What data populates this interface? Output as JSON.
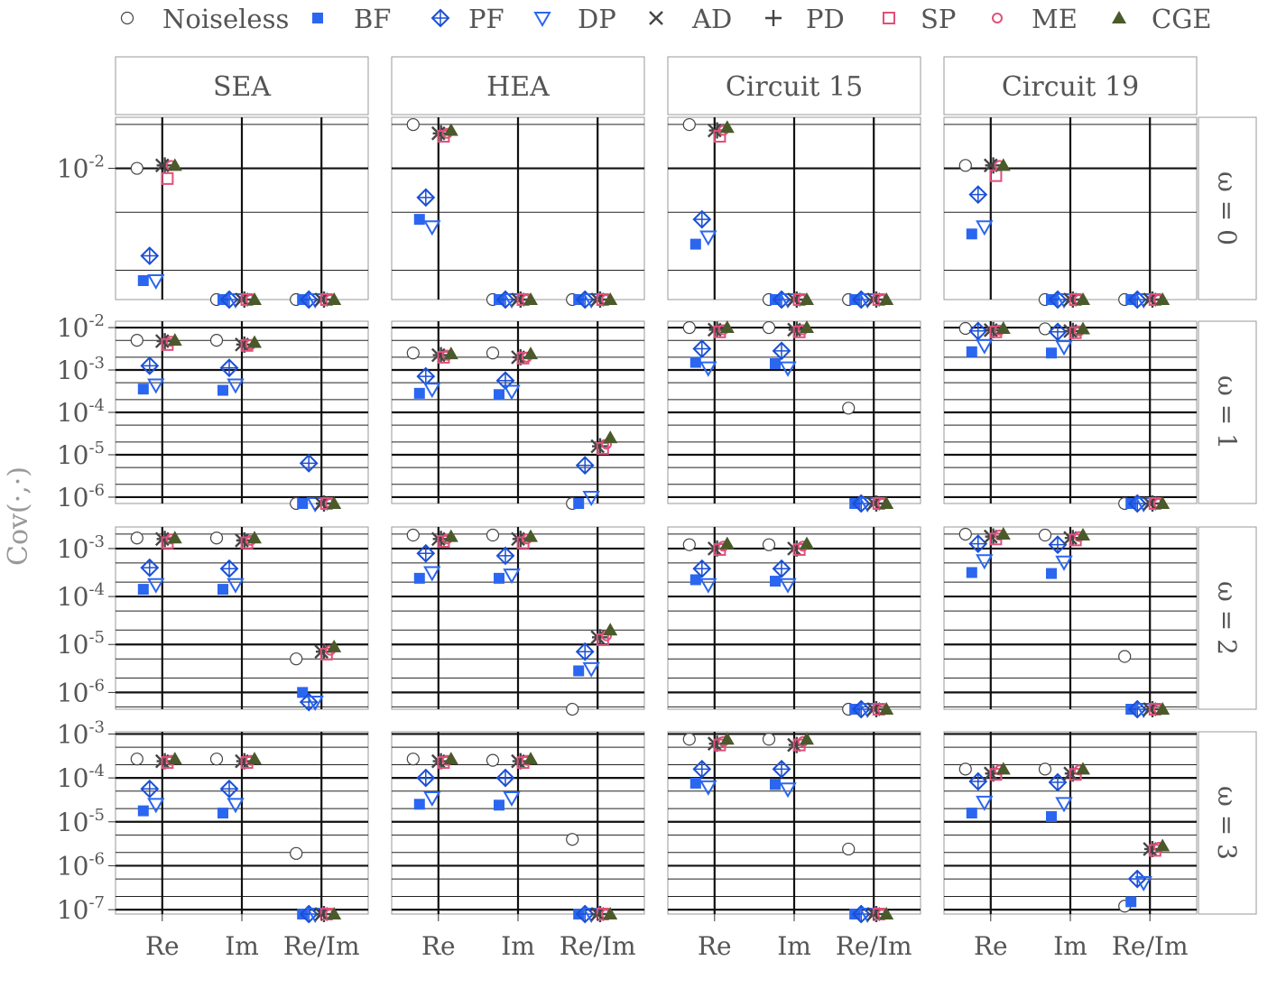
{
  "chart_data": {
    "type": "scatter",
    "ylabel": "Cov(·,·)",
    "yscale": "log",
    "columns": [
      "SEA",
      "HEA",
      "Circuit 15",
      "Circuit 19"
    ],
    "rows": [
      "ω = 0",
      "ω = 1",
      "ω = 2",
      "ω = 3"
    ],
    "categories": [
      "Re",
      "Im",
      "Re/Im"
    ],
    "legend": [
      {
        "name": "Noiseless",
        "marker": "open-circle",
        "color": "#444444"
      },
      {
        "name": "BF",
        "marker": "filled-square",
        "color": "#2a66f0"
      },
      {
        "name": "PF",
        "marker": "diamond-plus",
        "color": "#1a4fd6"
      },
      {
        "name": "DP",
        "marker": "open-triangle-down",
        "color": "#2a66f0"
      },
      {
        "name": "AD",
        "marker": "cross",
        "color": "#444444"
      },
      {
        "name": "PD",
        "marker": "plus",
        "color": "#444444"
      },
      {
        "name": "SP",
        "marker": "open-square",
        "color": "#e0507a"
      },
      {
        "name": "ME",
        "marker": "open-circle-small",
        "color": "#e0507a"
      },
      {
        "name": "CGE",
        "marker": "filled-triangle-up",
        "color": "#4a5a2a"
      }
    ],
    "legend_position": "top",
    "row_axes": [
      {
        "ylim_log10": [
          -2.9,
          -1.65
        ],
        "ticks": [
          {
            "value": -2,
            "label": "10-2"
          }
        ]
      },
      {
        "ylim_log10": [
          -6.15,
          -1.85
        ],
        "ticks": [
          {
            "value": -2,
            "label": "10-2"
          },
          {
            "value": -3,
            "label": "10-3"
          },
          {
            "value": -4,
            "label": "10-4"
          },
          {
            "value": -5,
            "label": "10-5"
          },
          {
            "value": -6,
            "label": "10-6"
          }
        ]
      },
      {
        "ylim_log10": [
          -6.35,
          -2.55
        ],
        "ticks": [
          {
            "value": -3,
            "label": "10-3"
          },
          {
            "value": -4,
            "label": "10-4"
          },
          {
            "value": -5,
            "label": "10-5"
          },
          {
            "value": -6,
            "label": "10-6"
          }
        ]
      },
      {
        "ylim_log10": [
          -7.1,
          -2.95
        ],
        "ticks": [
          {
            "value": -3,
            "label": "10-3"
          },
          {
            "value": -4,
            "label": "10-4"
          },
          {
            "value": -5,
            "label": "10-5"
          },
          {
            "value": -6,
            "label": "10-6"
          },
          {
            "value": -7,
            "label": "10-7"
          }
        ]
      }
    ],
    "panels": [
      [
        {
          "Re": [
            -2.0,
            -2.77,
            -2.6,
            -2.77,
            -1.98,
            -1.98,
            -2.07,
            -1.98,
            -1.98
          ],
          "Im": [
            -2.9,
            -2.9,
            -2.9,
            -2.9,
            -2.9,
            -2.9,
            -2.9,
            -2.9,
            -2.9
          ],
          "Re/Im": [
            -2.9,
            -2.9,
            -2.9,
            -2.9,
            -2.9,
            -2.9,
            -2.9,
            -2.9,
            -2.9
          ]
        },
        {
          "Re": [
            -1.7,
            -2.35,
            -2.2,
            -2.4,
            -1.76,
            -1.76,
            -1.78,
            -1.76,
            -1.74
          ],
          "Im": [
            -2.9,
            -2.9,
            -2.9,
            -2.9,
            -2.9,
            -2.9,
            -2.9,
            -2.9,
            -2.9
          ],
          "Re/Im": [
            -2.9,
            -2.9,
            -2.9,
            -2.9,
            -2.9,
            -2.9,
            -2.9,
            -2.9,
            -2.9
          ]
        },
        {
          "Re": [
            -1.7,
            -2.52,
            -2.35,
            -2.47,
            -1.74,
            -1.74,
            -1.78,
            -1.74,
            -1.72
          ],
          "Im": [
            -2.9,
            -2.9,
            -2.9,
            -2.9,
            -2.9,
            -2.9,
            -2.9,
            -2.9,
            -2.9
          ],
          "Re/Im": [
            -2.9,
            -2.9,
            -2.9,
            -2.9,
            -2.9,
            -2.9,
            -2.9,
            -2.9,
            -2.9
          ]
        },
        {
          "Re": [
            -1.98,
            -2.45,
            -2.18,
            -2.4,
            -1.98,
            -1.98,
            -2.05,
            -1.98,
            -1.98
          ],
          "Im": [
            -2.9,
            -2.9,
            -2.9,
            -2.9,
            -2.9,
            -2.9,
            -2.9,
            -2.9,
            -2.9
          ],
          "Re/Im": [
            -2.9,
            -2.9,
            -2.9,
            -2.9,
            -2.9,
            -2.9,
            -2.9,
            -2.9,
            -2.9
          ]
        }
      ],
      [
        {
          "Re": [
            -2.3,
            -3.45,
            -2.9,
            -3.35,
            -2.32,
            -2.32,
            -2.4,
            -2.32,
            -2.3
          ],
          "Im": [
            -2.3,
            -3.48,
            -2.95,
            -3.35,
            -2.4,
            -2.4,
            -2.42,
            -2.4,
            -2.35
          ],
          "Re/Im": [
            -6.15,
            -6.15,
            -5.2,
            -6.15,
            -6.15,
            -6.15,
            -6.15,
            -6.15,
            -6.15
          ]
        },
        {
          "Re": [
            -2.6,
            -3.55,
            -3.15,
            -3.45,
            -2.65,
            -2.65,
            -2.7,
            -2.65,
            -2.62
          ],
          "Im": [
            -2.6,
            -3.58,
            -3.25,
            -3.5,
            -2.7,
            -2.7,
            -2.72,
            -2.7,
            -2.62
          ],
          "Re/Im": [
            -6.15,
            -6.15,
            -5.25,
            -6.0,
            -4.8,
            -4.8,
            -4.85,
            -4.75,
            -4.6
          ]
        },
        {
          "Re": [
            -2.0,
            -2.82,
            -2.5,
            -2.95,
            -2.05,
            -2.05,
            -2.1,
            -2.05,
            -2.0
          ],
          "Im": [
            -2.0,
            -2.85,
            -2.55,
            -2.95,
            -2.05,
            -2.05,
            -2.1,
            -2.05,
            -2.0
          ],
          "Re/Im": [
            -3.9,
            -6.15,
            -6.15,
            -6.15,
            -6.15,
            -6.15,
            -6.15,
            -6.15,
            -6.15
          ]
        },
        {
          "Re": [
            -2.02,
            -2.57,
            -2.08,
            -2.42,
            -2.06,
            -2.06,
            -2.1,
            -2.06,
            -2.02
          ],
          "Im": [
            -2.03,
            -2.6,
            -2.1,
            -2.45,
            -2.08,
            -2.08,
            -2.12,
            -2.08,
            -2.03
          ],
          "Re/Im": [
            -6.15,
            -6.15,
            -6.15,
            -6.15,
            -6.15,
            -6.15,
            -6.15,
            -6.15,
            -6.15
          ]
        }
      ],
      [
        {
          "Re": [
            -2.78,
            -3.85,
            -3.4,
            -3.75,
            -2.8,
            -2.8,
            -2.88,
            -2.8,
            -2.78
          ],
          "Im": [
            -2.78,
            -3.85,
            -3.42,
            -3.75,
            -2.83,
            -2.83,
            -2.88,
            -2.83,
            -2.78
          ],
          "Re/Im": [
            -5.3,
            -6.0,
            -6.2,
            -6.2,
            -5.15,
            -5.15,
            -5.2,
            -5.12,
            -5.05
          ]
        },
        {
          "Re": [
            -2.72,
            -3.62,
            -3.1,
            -3.5,
            -2.8,
            -2.8,
            -2.85,
            -2.8,
            -2.75
          ],
          "Im": [
            -2.72,
            -3.62,
            -3.15,
            -3.55,
            -2.8,
            -2.8,
            -2.88,
            -2.8,
            -2.75
          ],
          "Re/Im": [
            -6.35,
            -5.55,
            -5.15,
            -5.5,
            -4.85,
            -4.85,
            -4.9,
            -4.82,
            -4.7
          ]
        },
        {
          "Re": [
            -2.92,
            -3.65,
            -3.42,
            -3.75,
            -3.0,
            -3.0,
            -3.02,
            -2.95,
            -2.9
          ],
          "Im": [
            -2.92,
            -3.68,
            -3.42,
            -3.75,
            -3.0,
            -3.0,
            -3.02,
            -2.95,
            -2.9
          ],
          "Re/Im": [
            -6.35,
            -6.35,
            -6.35,
            -6.35,
            -6.35,
            -6.35,
            -6.35,
            -6.35,
            -6.35
          ]
        },
        {
          "Re": [
            -2.7,
            -3.5,
            -2.9,
            -3.25,
            -2.75,
            -2.75,
            -2.8,
            -2.72,
            -2.7
          ],
          "Im": [
            -2.72,
            -3.52,
            -2.92,
            -3.28,
            -2.78,
            -2.78,
            -2.82,
            -2.75,
            -2.72
          ],
          "Re/Im": [
            -5.25,
            -6.35,
            -6.35,
            -6.35,
            -6.35,
            -6.35,
            -6.35,
            -6.35,
            -6.35
          ]
        }
      ],
      [
        {
          "Re": [
            -3.57,
            -4.75,
            -4.25,
            -4.6,
            -3.62,
            -3.62,
            -3.65,
            -3.6,
            -3.57
          ],
          "Im": [
            -3.57,
            -4.8,
            -4.25,
            -4.6,
            -3.62,
            -3.62,
            -3.65,
            -3.6,
            -3.57
          ],
          "Re/Im": [
            -5.72,
            -7.1,
            -7.1,
            -7.1,
            -7.1,
            -7.1,
            -7.1,
            -7.1,
            -7.1
          ]
        },
        {
          "Re": [
            -3.57,
            -4.6,
            -4.0,
            -4.45,
            -3.62,
            -3.62,
            -3.65,
            -3.6,
            -3.57
          ],
          "Im": [
            -3.6,
            -4.62,
            -4.0,
            -4.45,
            -3.62,
            -3.62,
            -3.65,
            -3.6,
            -3.57
          ],
          "Re/Im": [
            -5.4,
            -7.1,
            -7.1,
            -7.1,
            -7.1,
            -7.1,
            -7.1,
            -7.1,
            -7.1
          ]
        },
        {
          "Re": [
            -3.12,
            -4.12,
            -3.8,
            -4.2,
            -3.22,
            -3.22,
            -3.25,
            -3.17,
            -3.12
          ],
          "Im": [
            -3.12,
            -4.15,
            -3.8,
            -4.25,
            -3.25,
            -3.25,
            -3.25,
            -3.17,
            -3.12
          ],
          "Re/Im": [
            -5.62,
            -7.1,
            -7.1,
            -7.1,
            -7.1,
            -7.1,
            -7.1,
            -7.1,
            -7.1
          ]
        },
        {
          "Re": [
            -3.8,
            -4.8,
            -4.08,
            -4.55,
            -3.9,
            -3.9,
            -3.92,
            -3.82,
            -3.8
          ],
          "Im": [
            -3.8,
            -4.88,
            -4.1,
            -4.58,
            -3.9,
            -3.9,
            -3.92,
            -3.82,
            -3.8
          ],
          "Re/Im": [
            -6.92,
            -6.82,
            -6.3,
            -6.38,
            -5.62,
            -5.62,
            -5.65,
            -5.58,
            -5.55
          ]
        }
      ]
    ]
  }
}
